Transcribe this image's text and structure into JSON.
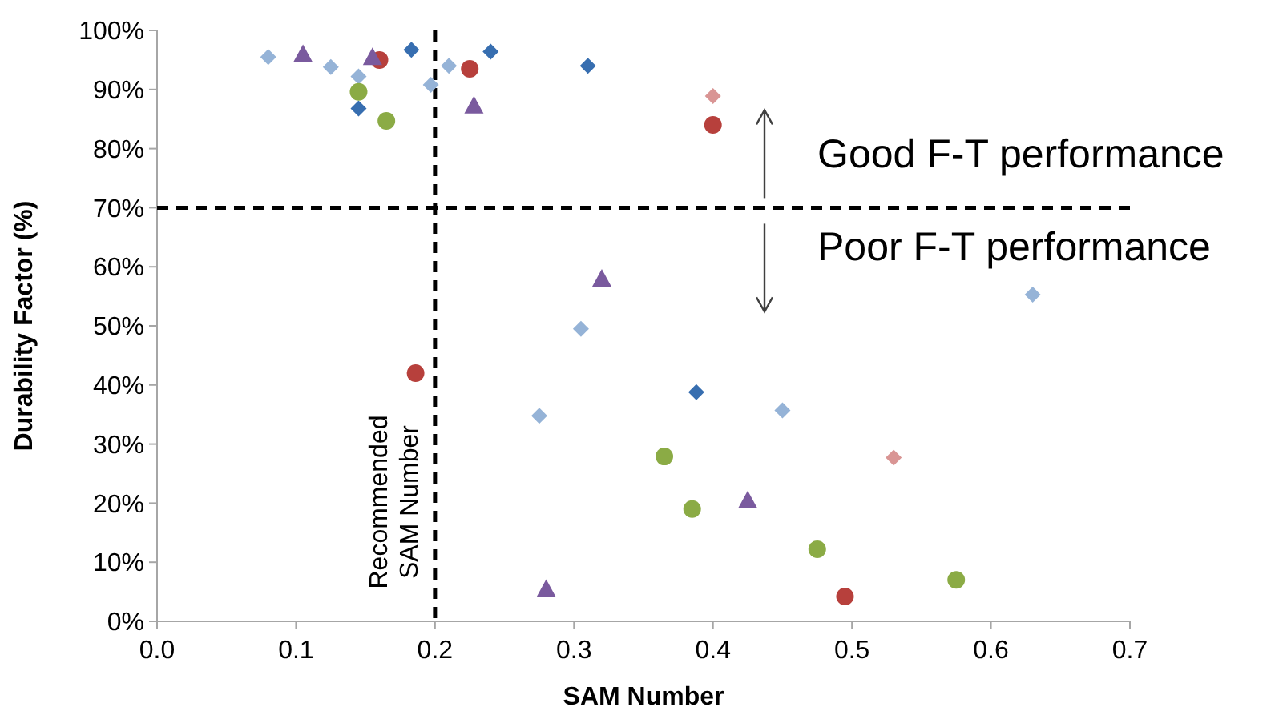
{
  "chart_data": {
    "type": "scatter",
    "xlabel": "SAM Number",
    "ylabel": "Durability Factor (%)",
    "xlim": [
      0,
      0.7
    ],
    "xticks": [
      {
        "value": 0,
        "label": "0.0"
      },
      {
        "value": 0.1,
        "label": "0.1"
      },
      {
        "value": 0.2,
        "label": "0.2"
      },
      {
        "value": 0.3,
        "label": "0.3"
      },
      {
        "value": 0.4,
        "label": "0.4"
      },
      {
        "value": 0.5,
        "label": "0.5"
      },
      {
        "value": 0.6,
        "label": "0.6"
      },
      {
        "value": 0.7,
        "label": "0.7"
      }
    ],
    "ylim": [
      0,
      100
    ],
    "yticks": [
      {
        "value": 0,
        "label": "0%"
      },
      {
        "value": 10,
        "label": "10%"
      },
      {
        "value": 20,
        "label": "20%"
      },
      {
        "value": 30,
        "label": "30%"
      },
      {
        "value": 40,
        "label": "40%"
      },
      {
        "value": 50,
        "label": "50%"
      },
      {
        "value": 60,
        "label": "60%"
      },
      {
        "value": 70,
        "label": "70%"
      },
      {
        "value": 80,
        "label": "80%"
      },
      {
        "value": 90,
        "label": "90%"
      },
      {
        "value": 100,
        "label": "100%"
      }
    ],
    "grid": false,
    "series": [
      {
        "color": "#95b3d7",
        "marker": "diamond",
        "x": [
          0.08,
          0.125,
          0.145,
          0.197,
          0.21,
          0.305,
          0.275,
          0.45,
          0.63
        ],
        "values": [
          95.5,
          93.8,
          92.2,
          90.8,
          94,
          49.5,
          34.8,
          35.7,
          55.3
        ]
      },
      {
        "color": "#376eb0",
        "marker": "diamond",
        "x": [
          0.145,
          0.183,
          0.24,
          0.31,
          0.388
        ],
        "values": [
          86.8,
          96.7,
          96.4,
          94,
          38.8
        ]
      },
      {
        "color": "#b7403c",
        "marker": "circle",
        "x": [
          0.16,
          0.225,
          0.4,
          0.186,
          0.495
        ],
        "values": [
          95,
          93.5,
          84,
          42,
          4.2
        ]
      },
      {
        "color": "#8bab45",
        "marker": "circle",
        "x": [
          0.145,
          0.165,
          0.365,
          0.385,
          0.475,
          0.575
        ],
        "values": [
          89.6,
          84.7,
          27.9,
          19,
          12.2,
          7
        ]
      },
      {
        "color": "#7a5a9e",
        "marker": "triangle",
        "x": [
          0.105,
          0.155,
          0.228,
          0.32,
          0.425,
          0.28
        ],
        "values": [
          96,
          95.5,
          87.3,
          58,
          20.5,
          5.5
        ]
      },
      {
        "color": "#d99594",
        "marker": "diamond",
        "x": [
          0.4,
          0.53
        ],
        "values": [
          88.9,
          27.7
        ]
      }
    ],
    "ref_lines": [
      {
        "axis": "x",
        "value": 0.2,
        "label": "Recommended SAM Number",
        "line_style": "dashed"
      },
      {
        "axis": "y",
        "value": 70,
        "label": null,
        "line_style": "dashed"
      }
    ],
    "annotations": [
      "Good F-T performance",
      "Poor F-T performance"
    ]
  }
}
